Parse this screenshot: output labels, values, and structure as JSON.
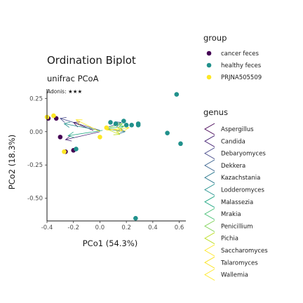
{
  "chart_data": {
    "type": "scatter",
    "title": "Ordination Biplot",
    "subtitle": "unifrac PCoA",
    "annotation": "Adonis: ★★★",
    "xlabel": "PCo1 (54.3%)",
    "ylabel": "PCo2 (18.3%)",
    "xlim": [
      -0.4,
      0.65
    ],
    "ylim": [
      -0.67,
      0.32
    ],
    "xticks": [
      -0.4,
      -0.2,
      0.0,
      0.2,
      0.4,
      0.6
    ],
    "xtick_labels": [
      "-0.4",
      "-0.2",
      "0.0",
      "0.2",
      "0.4",
      "0.6"
    ],
    "yticks": [
      0.25,
      0.0,
      -0.25,
      -0.5
    ],
    "ytick_labels": [
      "0.25",
      "0.00",
      "-0.25",
      "-0.50"
    ],
    "grid": false,
    "legend_placement": "right",
    "group_legend": {
      "title": "group",
      "entries": [
        {
          "name": "cancer feces",
          "color": "#440154"
        },
        {
          "name": "healthy feces",
          "color": "#21918c"
        },
        {
          "name": "PRJNA505509",
          "color": "#fde725"
        }
      ]
    },
    "points": [
      {
        "group": "cancer feces",
        "x": -0.39,
        "y": 0.1
      },
      {
        "group": "cancer feces",
        "x": -0.33,
        "y": 0.1
      },
      {
        "group": "cancer feces",
        "x": -0.3,
        "y": -0.04
      },
      {
        "group": "cancer feces",
        "x": -0.26,
        "y": -0.15
      },
      {
        "group": "cancer feces",
        "x": -0.2,
        "y": -0.14
      },
      {
        "group": "healthy feces",
        "x": -0.18,
        "y": -0.13
      },
      {
        "group": "healthy feces",
        "x": 0.08,
        "y": 0.07
      },
      {
        "group": "healthy feces",
        "x": 0.12,
        "y": 0.06
      },
      {
        "group": "healthy feces",
        "x": 0.18,
        "y": 0.08
      },
      {
        "group": "healthy feces",
        "x": 0.2,
        "y": 0.05
      },
      {
        "group": "healthy feces",
        "x": 0.24,
        "y": 0.05
      },
      {
        "group": "healthy feces",
        "x": 0.29,
        "y": 0.05
      },
      {
        "group": "healthy feces",
        "x": 0.29,
        "y": 0.06
      },
      {
        "group": "healthy feces",
        "x": 0.51,
        "y": -0.01
      },
      {
        "group": "healthy feces",
        "x": 0.58,
        "y": 0.28
      },
      {
        "group": "healthy feces",
        "x": 0.61,
        "y": -0.09
      },
      {
        "group": "healthy feces",
        "x": 0.27,
        "y": -0.65
      },
      {
        "group": "PRJNA505509",
        "x": -0.4,
        "y": 0.11
      },
      {
        "group": "PRJNA505509",
        "x": -0.35,
        "y": 0.12
      },
      {
        "group": "PRJNA505509",
        "x": -0.27,
        "y": -0.15
      },
      {
        "group": "PRJNA505509",
        "x": 0.0,
        "y": -0.04
      },
      {
        "group": "PRJNA505509",
        "x": 0.05,
        "y": 0.03
      }
    ],
    "genus_legend": {
      "title": "genus",
      "entries": [
        {
          "name": "Aspergillus",
          "color": "#440154"
        },
        {
          "name": "Candida",
          "color": "#482576"
        },
        {
          "name": "Debaryomyces",
          "color": "#414487"
        },
        {
          "name": "Dekkera",
          "color": "#35608d"
        },
        {
          "name": "Kazachstania",
          "color": "#2a788e"
        },
        {
          "name": "Lodderomyces",
          "color": "#21908d"
        },
        {
          "name": "Malassezia",
          "color": "#22a884"
        },
        {
          "name": "Mrakia",
          "color": "#42be71"
        },
        {
          "name": "Penicillium",
          "color": "#7ad151"
        },
        {
          "name": "Pichia",
          "color": "#bddf26"
        },
        {
          "name": "Saccharomyces",
          "color": "#fde725"
        },
        {
          "name": "Talaromyces",
          "color": "#f9e21e"
        },
        {
          "name": "Wallemia",
          "color": "#fde725"
        }
      ]
    },
    "arrows": [
      {
        "genus": "Aspergillus",
        "x_start": -0.05,
        "y_start": 0.01,
        "x_end": -0.2,
        "y_end": 0.07
      },
      {
        "genus": "Candida",
        "x_start": 0.0,
        "y_start": 0.0,
        "x_end": -0.26,
        "y_end": -0.06
      },
      {
        "genus": "Debaryomyces",
        "x_start": 0.0,
        "y_start": 0.01,
        "x_end": -0.3,
        "y_end": 0.1
      },
      {
        "genus": "Dekkera",
        "x_start": 0.05,
        "y_start": 0.03,
        "x_end": 0.16,
        "y_end": 0.07
      },
      {
        "genus": "Kazachstania",
        "x_start": 0.05,
        "y_start": 0.02,
        "x_end": 0.19,
        "y_end": 0.0
      },
      {
        "genus": "Lodderomyces",
        "x_start": 0.0,
        "y_start": 0.01,
        "x_end": -0.27,
        "y_end": 0.06
      },
      {
        "genus": "Malassezia",
        "x_start": 0.02,
        "y_start": 0.01,
        "x_end": -0.24,
        "y_end": -0.03
      },
      {
        "genus": "Mrakia",
        "x_start": 0.05,
        "y_start": 0.02,
        "x_end": 0.18,
        "y_end": 0.04
      },
      {
        "genus": "Penicillium",
        "x_start": 0.04,
        "y_start": 0.02,
        "x_end": 0.17,
        "y_end": 0.06
      },
      {
        "genus": "Pichia",
        "x_start": 0.05,
        "y_start": 0.02,
        "x_end": 0.15,
        "y_end": -0.02
      },
      {
        "genus": "Saccharomyces",
        "x_start": 0.0,
        "y_start": 0.0,
        "x_end": -0.18,
        "y_end": 0.09
      },
      {
        "genus": "Talaromyces",
        "x_start": 0.06,
        "y_start": 0.02,
        "x_end": 0.17,
        "y_end": 0.01
      },
      {
        "genus": "Wallemia",
        "x_start": 0.05,
        "y_start": 0.01,
        "x_end": 0.22,
        "y_end": 0.03
      }
    ]
  }
}
